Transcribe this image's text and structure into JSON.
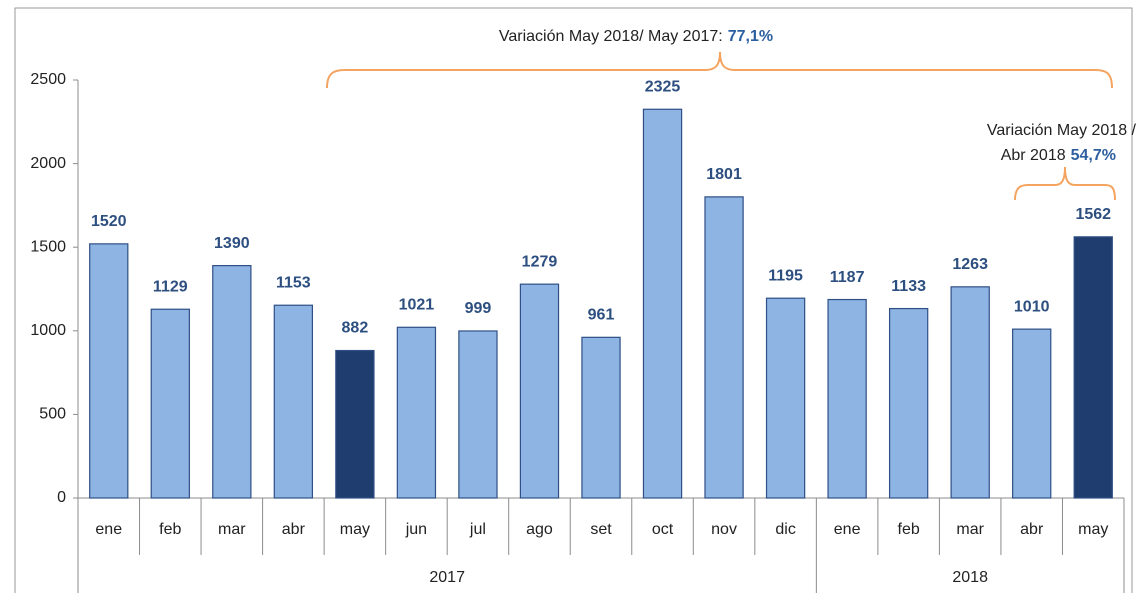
{
  "chart_data": {
    "type": "bar",
    "categories": [
      "ene",
      "feb",
      "mar",
      "abr",
      "may",
      "jun",
      "jul",
      "ago",
      "set",
      "oct",
      "nov",
      "dic",
      "ene",
      "feb",
      "mar",
      "abr",
      "may"
    ],
    "values": [
      1520,
      1129,
      1390,
      1153,
      882,
      1021,
      999,
      1279,
      961,
      2325,
      1801,
      1195,
      1187,
      1133,
      1263,
      1010,
      1562
    ],
    "colors": [
      "#8db4e2",
      "#8db4e2",
      "#8db4e2",
      "#8db4e2",
      "#1f3d6f",
      "#8db4e2",
      "#8db4e2",
      "#8db4e2",
      "#8db4e2",
      "#8db4e2",
      "#8db4e2",
      "#8db4e2",
      "#8db4e2",
      "#8db4e2",
      "#8db4e2",
      "#8db4e2",
      "#1f3d6f"
    ],
    "groups": [
      {
        "label": "2017",
        "span": 12
      },
      {
        "label": "2018",
        "span": 5
      }
    ],
    "ylim": [
      0,
      2500
    ],
    "yticks": [
      0,
      500,
      1000,
      1500,
      2000,
      2500
    ],
    "annotations": [
      {
        "lines": [
          "Variación May 2018/ May 2017:"
        ],
        "highlight": "77,1%"
      },
      {
        "lines": [
          "Variación May 2018 /",
          "Abr 2018"
        ],
        "highlight": "54,7%"
      }
    ]
  }
}
